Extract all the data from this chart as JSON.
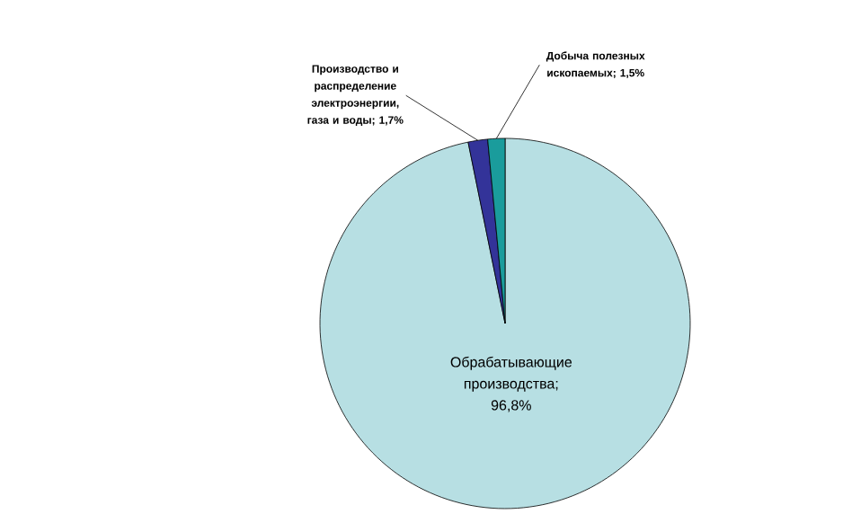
{
  "chart_data": {
    "type": "pie",
    "categories": [
      "Обрабатывающие производства",
      "Производство и распределение электроэнергии, газа и воды",
      "Добыча полезных ископаемых"
    ],
    "values": [
      96.8,
      1.7,
      1.5
    ],
    "colors": [
      "#b7dfe3",
      "#333399",
      "#1a9c9c"
    ],
    "value_labels": [
      "; 96,8%",
      "; 1,7%",
      "; 1,5%"
    ]
  }
}
